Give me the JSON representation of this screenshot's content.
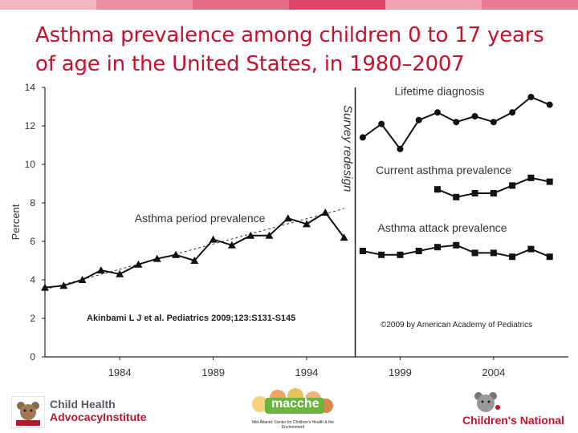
{
  "slide": {
    "title": "Asthma prevalence among children 0 to 17 years of age in the United States, in 1980–2007",
    "colors": {
      "title": "#c8102e",
      "series": "#111111",
      "accent_bar": [
        "#f4b6c2",
        "#ec8fa3",
        "#e56a84",
        "#dd4466",
        "#f2a0b4",
        "#ea7b96"
      ]
    }
  },
  "chart_data": {
    "type": "line",
    "ylabel": "Percent",
    "xlabel": "",
    "ylim": [
      0,
      14
    ],
    "xlim": [
      1980,
      2008
    ],
    "yticks": [
      0,
      2,
      4,
      6,
      8,
      10,
      12,
      14
    ],
    "xticks": [
      1984,
      1989,
      1994,
      1999,
      2004
    ],
    "grid": false,
    "divider": {
      "x": 1996.6,
      "label": "Survey redesign"
    },
    "series": [
      {
        "name": "Asthma period prevalence",
        "x": [
          1980,
          1981,
          1982,
          1983,
          1984,
          1985,
          1986,
          1987,
          1988,
          1989,
          1990,
          1991,
          1992,
          1993,
          1994,
          1995,
          1996
        ],
        "values": [
          3.6,
          3.7,
          4.0,
          4.5,
          4.3,
          4.8,
          5.1,
          5.3,
          5.0,
          6.1,
          5.8,
          6.3,
          6.3,
          7.2,
          6.9,
          7.5,
          6.2
        ]
      },
      {
        "name": "Lifetime diagnosis",
        "x": [
          1997,
          1998,
          1999,
          2000,
          2001,
          2002,
          2003,
          2004,
          2005,
          2006,
          2007
        ],
        "values": [
          11.4,
          12.1,
          10.8,
          12.3,
          12.7,
          12.2,
          12.5,
          12.2,
          12.7,
          13.5,
          13.1
        ]
      },
      {
        "name": "Current asthma prevalence",
        "x": [
          2001,
          2002,
          2003,
          2004,
          2005,
          2006,
          2007
        ],
        "values": [
          8.7,
          8.3,
          8.5,
          8.5,
          8.9,
          9.3,
          9.1
        ]
      },
      {
        "name": "Asthma attack prevalence",
        "x": [
          1997,
          1998,
          1999,
          2000,
          2001,
          2002,
          2003,
          2004,
          2005,
          2006,
          2007
        ],
        "values": [
          5.5,
          5.3,
          5.3,
          5.5,
          5.7,
          5.8,
          5.4,
          5.4,
          5.2,
          5.6,
          5.2
        ]
      }
    ],
    "trend": {
      "name": "trend",
      "x": [
        1980,
        1996
      ],
      "values": [
        3.5,
        7.7
      ]
    },
    "annotations": [
      "Akinbami L J et al. Pediatrics 2009;123:S131-S145",
      "©2009 by American Academy of Pediatrics"
    ]
  },
  "footer": {
    "left_logo": {
      "line1": "Child Health",
      "line2": "AdvocacyInstitute",
      "icon": "teddy-bear-icon"
    },
    "middle_logo": {
      "name": "macche",
      "subtitle": "Mid-Atlantic Center for Children's Health & the Environment",
      "icon": "children-faces-icon"
    },
    "right_logo": {
      "name": "Children's National",
      "icon": "bear-icon"
    }
  }
}
